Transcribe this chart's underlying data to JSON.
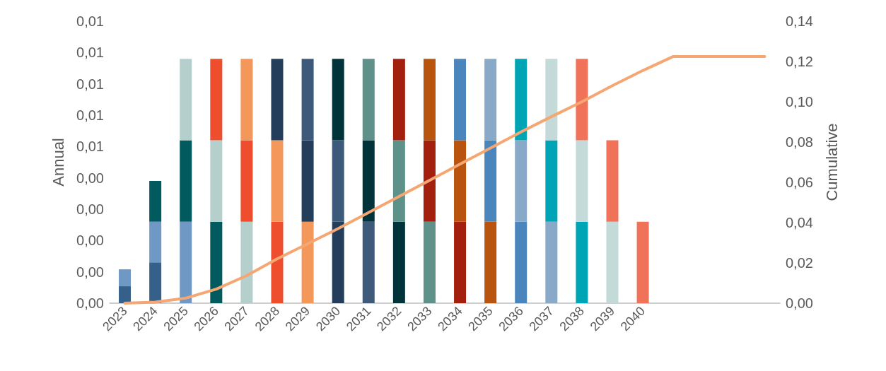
{
  "chart_data": {
    "type": "bar",
    "stacked": true,
    "ylabel": "Annual",
    "y2label": "Cumulative",
    "grid": false,
    "marker": "none",
    "line_style": "solid",
    "categories": [
      "2023",
      "2024",
      "2025",
      "2026",
      "2027",
      "2028",
      "2029",
      "2030",
      "2031",
      "2032",
      "2033",
      "2034",
      "2035",
      "2036",
      "2037",
      "2038",
      "2039",
      "2040",
      null,
      null,
      null,
      null
    ],
    "ylim": [
      0,
      0.009
    ],
    "yticks": [
      {
        "value": 0,
        "label": "0,00"
      },
      {
        "value": 0.001,
        "label": "0,00"
      },
      {
        "value": 0.002,
        "label": "0,00"
      },
      {
        "value": 0.003,
        "label": "0,00"
      },
      {
        "value": 0.004,
        "label": "0,00"
      },
      {
        "value": 0.005,
        "label": "0,01"
      },
      {
        "value": 0.006,
        "label": "0,01"
      },
      {
        "value": 0.007,
        "label": "0,01"
      },
      {
        "value": 0.008,
        "label": "0,01"
      },
      {
        "value": 0.009,
        "label": "0,01"
      }
    ],
    "y2lim": [
      0,
      0.14
    ],
    "y2ticks": [
      {
        "value": 0,
        "label": "0,00"
      },
      {
        "value": 0.02,
        "label": "0,02"
      },
      {
        "value": 0.04,
        "label": "0,04"
      },
      {
        "value": 0.06,
        "label": "0,06"
      },
      {
        "value": 0.08,
        "label": "0,08"
      },
      {
        "value": 0.1,
        "label": "0,10"
      },
      {
        "value": 0.12,
        "label": "0,12"
      },
      {
        "value": 0.14,
        "label": "0,14"
      }
    ],
    "series": [
      {
        "values": [
          0.00054,
          0.0013,
          0.0026,
          0.0026,
          0.0026,
          0.0026,
          0.0026,
          0.0026,
          0.0026,
          0.0026,
          0.0026,
          0.0026,
          0.0026,
          0.0026,
          0.0026,
          0.0026,
          0.0026,
          0.0026,
          null,
          null,
          null,
          null
        ],
        "colors": [
          "#35608a",
          "#35608a",
          "#6f98c4",
          "#005a5e",
          "#b5cfcd",
          "#ef4e2e",
          "#f4975a",
          "#233d5a",
          "#3d5a7a",
          "#00343a",
          "#5d9189",
          "#a3200f",
          "#b9540f",
          "#4a85bb",
          "#89a9c9",
          "#00a5b5",
          "#c3dad9",
          "#f07258",
          null,
          null,
          null,
          null
        ]
      },
      {
        "values": [
          0.00054,
          0.0013,
          0.0026,
          0.0026,
          0.0026,
          0.0026,
          0.0026,
          0.0026,
          0.0026,
          0.0026,
          0.0026,
          0.0026,
          0.0026,
          0.0026,
          0.0026,
          0.0026,
          0.0026,
          null,
          null,
          null,
          null,
          null
        ],
        "colors": [
          "#6f98c4",
          "#6f98c4",
          "#005a5e",
          "#b5cfcd",
          "#ef4e2e",
          "#f4975a",
          "#233d5a",
          "#3d5a7a",
          "#00343a",
          "#5d9189",
          "#a3200f",
          "#b9540f",
          "#4a85bb",
          "#89a9c9",
          "#00a5b5",
          "#c3dad9",
          "#f07258",
          null,
          null,
          null,
          null,
          null
        ]
      },
      {
        "values": [
          null,
          0.0013,
          0.0026,
          0.0026,
          0.0026,
          0.0026,
          0.0026,
          0.0026,
          0.0026,
          0.0026,
          0.0026,
          0.0026,
          0.0026,
          0.0026,
          0.0026,
          0.0026,
          null,
          null,
          null,
          null,
          null,
          null
        ],
        "colors": [
          null,
          "#005a5e",
          "#b5cfcd",
          "#ef4e2e",
          "#f4975a",
          "#233d5a",
          "#3d5a7a",
          "#00343a",
          "#5d9189",
          "#a3200f",
          "#b9540f",
          "#4a85bb",
          "#89a9c9",
          "#00a5b5",
          "#c3dad9",
          "#f07258",
          null,
          null,
          null,
          null,
          null,
          null
        ]
      },
      {
        "type": "line",
        "axis": "y2",
        "color": "#f4a772",
        "values": [
          0,
          0.0005,
          0.0025,
          0.007,
          0.0137,
          0.022,
          0.0295,
          0.037,
          0.045,
          0.053,
          0.061,
          0.069,
          0.077,
          0.085,
          0.0926,
          0.1,
          0.108,
          0.1155,
          0.1225,
          0.1225,
          0.1225,
          0.1225
        ]
      }
    ]
  }
}
